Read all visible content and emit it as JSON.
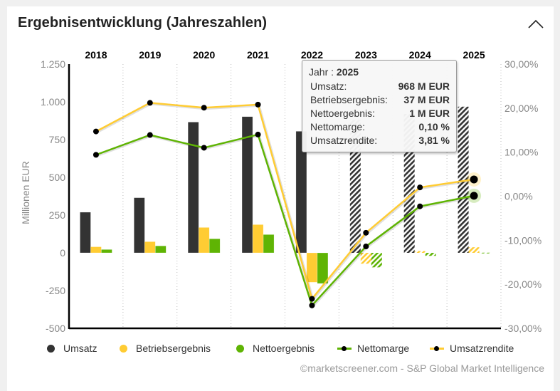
{
  "header": {
    "title": "Ergebnisentwicklung (Jahreszahlen)",
    "collapse_icon": "chevron-up-icon"
  },
  "chart_data": {
    "type": "bar",
    "title": "Ergebnisentwicklung (Jahreszahlen)",
    "categories": [
      "2018",
      "2019",
      "2020",
      "2021",
      "2022",
      "2023",
      "2024",
      "2025"
    ],
    "estimate_from_index": 5,
    "ylabel": "Millionen EUR",
    "ylim": [
      -500,
      1250
    ],
    "yticks": [
      1250,
      1000,
      750,
      500,
      250,
      0,
      -250,
      -500
    ],
    "ytick_labels": [
      "1.250",
      "1.000",
      "750",
      "500",
      "250",
      "0",
      "-250",
      "-500"
    ],
    "y2lim": [
      -30,
      30
    ],
    "y2ticks": [
      30,
      20,
      10,
      0,
      -10,
      -20,
      -30
    ],
    "y2tick_labels": [
      "30,00%",
      "20,00%",
      "10,00%",
      "0,00%",
      "-10,00%",
      "-20,00%",
      "-30,00%"
    ],
    "grid": "vertical-dotted",
    "legend_position": "bottom",
    "series": [
      {
        "name": "Umsatz",
        "kind": "bar",
        "axis": "left",
        "color": "#333333",
        "values": [
          269,
          365,
          866,
          902,
          805,
          880,
          920,
          968
        ]
      },
      {
        "name": "Betriebsergebnis",
        "kind": "bar",
        "axis": "left",
        "color": "#ffcc33",
        "values": [
          40,
          74,
          168,
          187,
          -195,
          -72,
          12,
          37
        ]
      },
      {
        "name": "Nettoergebnis",
        "kind": "bar",
        "axis": "left",
        "color": "#5fb404",
        "values": [
          22,
          46,
          93,
          121,
          -203,
          -96,
          -20,
          1
        ]
      },
      {
        "name": "Nettomarge",
        "kind": "line",
        "axis": "right",
        "color": "#5fb404",
        "values": [
          9.4,
          13.9,
          11.0,
          14.0,
          -24.8,
          -11.4,
          -2.3,
          0.1
        ]
      },
      {
        "name": "Umsatzrendite",
        "kind": "line",
        "axis": "right",
        "color": "#ffcc33",
        "values": [
          14.7,
          21.2,
          20.1,
          20.8,
          -23.3,
          -8.3,
          2.0,
          3.81
        ]
      }
    ]
  },
  "tooltip": {
    "year_label": "Jahr :",
    "year": "2025",
    "rows": [
      {
        "label": "Umsatz:",
        "value": "968 M EUR"
      },
      {
        "label": "Betriebsergebnis:",
        "value": "37 M EUR"
      },
      {
        "label": "Nettoergebnis:",
        "value": "1 M EUR"
      },
      {
        "label": "Nettomarge:",
        "value": "0,10 %"
      },
      {
        "label": "Umsatzrendite:",
        "value": "3,81 %"
      }
    ]
  },
  "legend": {
    "items": [
      {
        "label": "Umsatz",
        "type": "dot",
        "color": "#333333"
      },
      {
        "label": "Betriebsergebnis",
        "type": "dot",
        "color": "#ffcc33"
      },
      {
        "label": "Nettoergebnis",
        "type": "dot",
        "color": "#5fb404"
      },
      {
        "label": "Nettomarge",
        "type": "line",
        "color": "#5fb404"
      },
      {
        "label": "Umsatzrendite",
        "type": "line",
        "color": "#ffcc33"
      }
    ]
  },
  "credit": "©marketscreener.com - S&P Global Market Intelligence"
}
